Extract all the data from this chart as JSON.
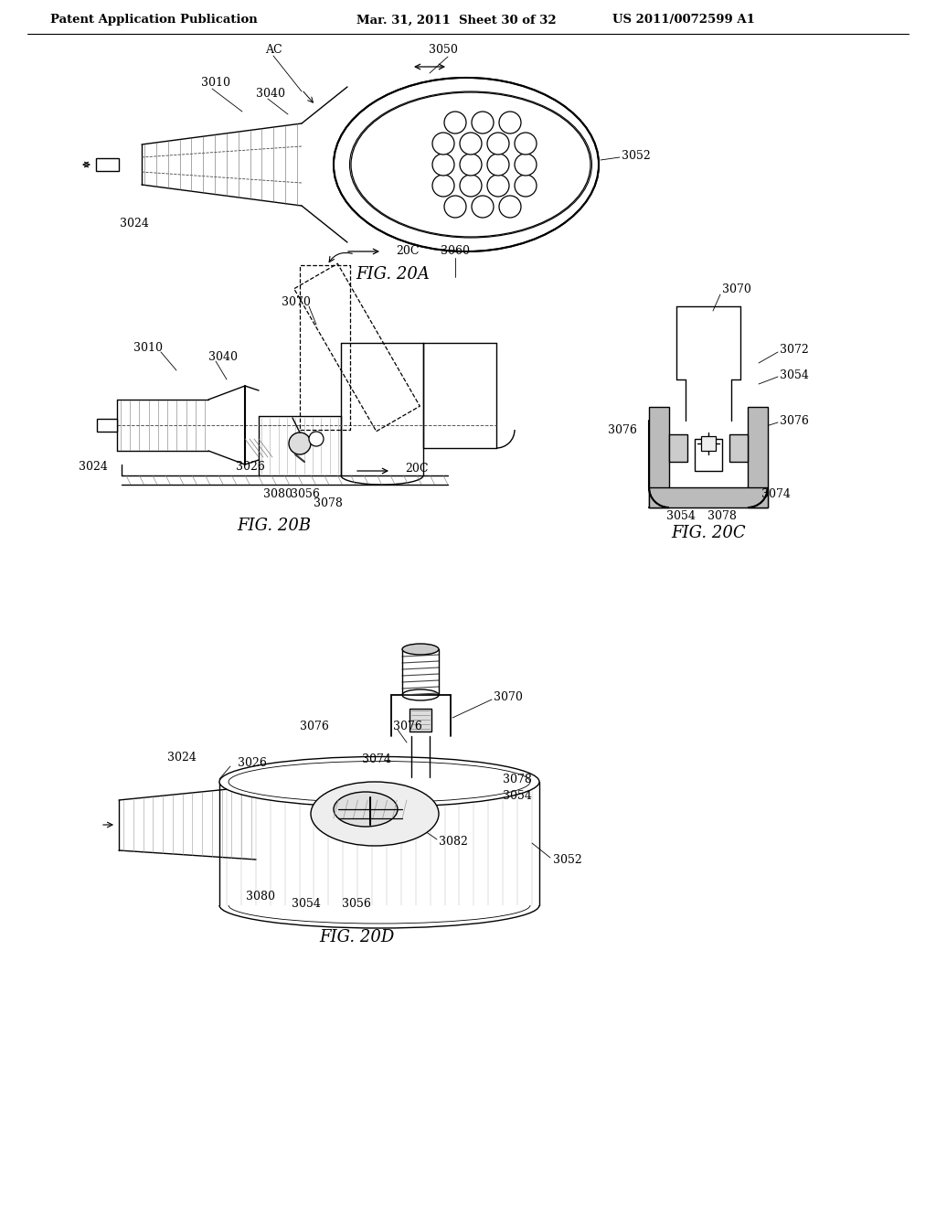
{
  "header_left": "Patent Application Publication",
  "header_center": "Mar. 31, 2011  Sheet 30 of 32",
  "header_right": "US 2011/0072599 A1",
  "fig20a_caption": "FIG. 20A",
  "fig20b_caption": "FIG. 20B",
  "fig20c_caption": "FIG. 20C",
  "fig20d_caption": "FIG. 20D",
  "background_color": "#ffffff",
  "header_fontsize": 10,
  "caption_fontsize": 13,
  "label_fontsize": 9
}
